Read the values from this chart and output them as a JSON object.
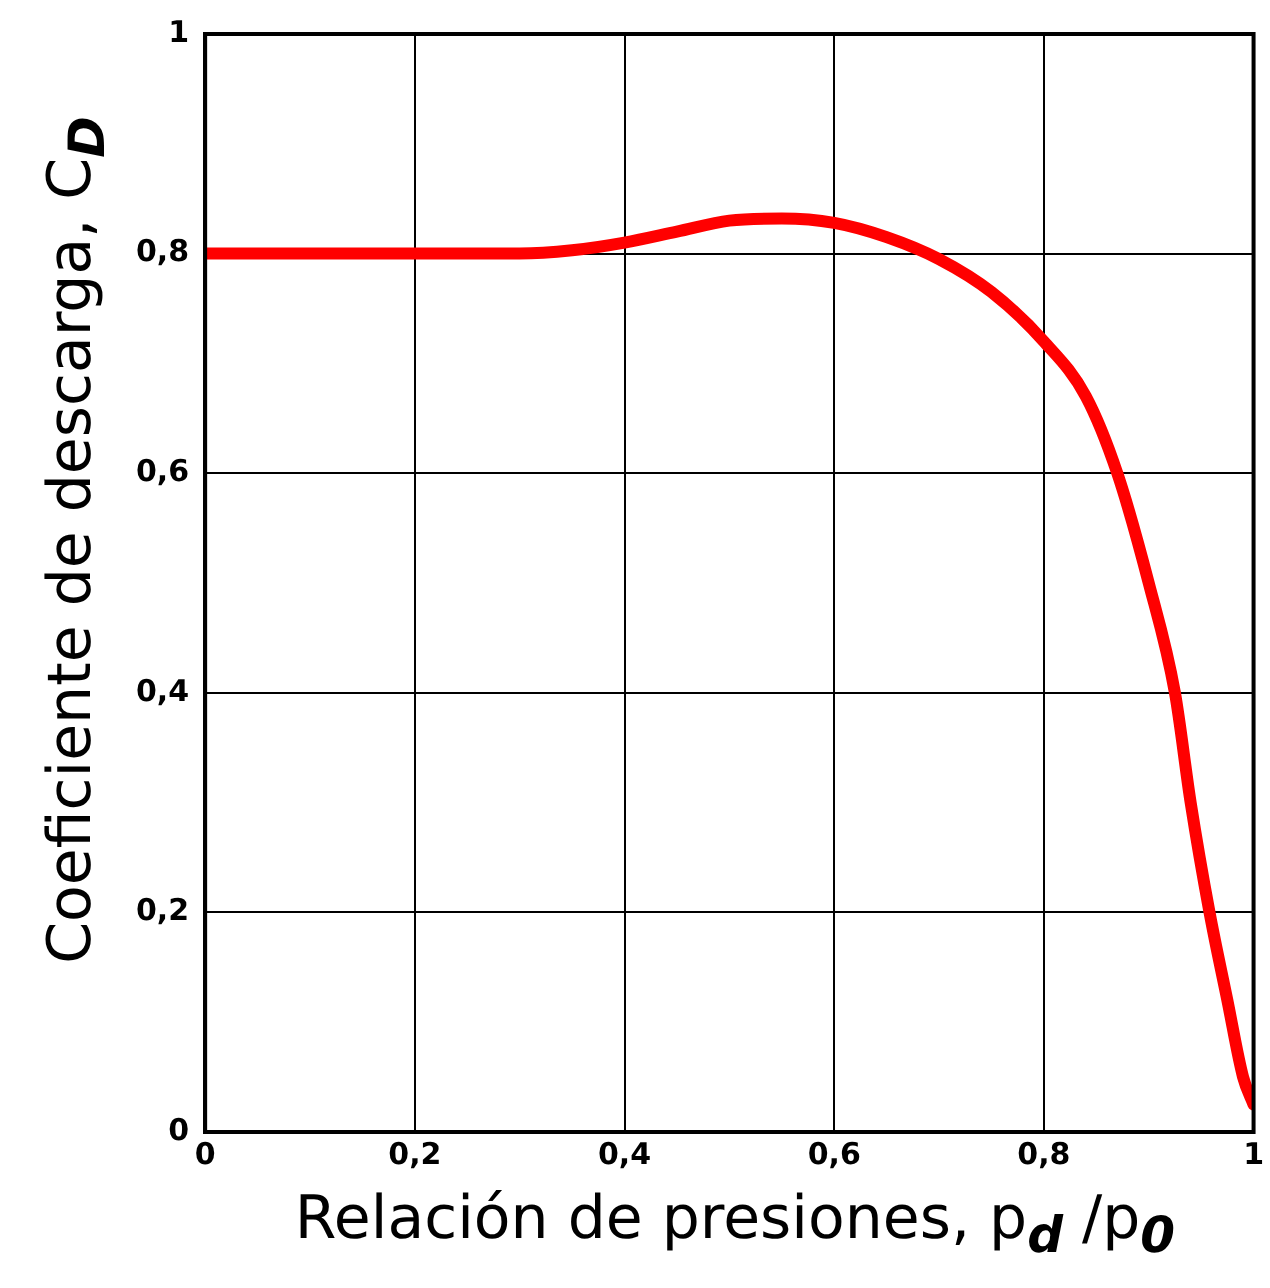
{
  "chart_data": {
    "type": "line",
    "xlabel": "Relación de presiones, p$_{d}$ /p$_{0}$",
    "ylabel": "Coeficiente de descarga, C$_{D}$",
    "x": [
      0,
      0.1,
      0.2,
      0.3,
      0.35,
      0.4,
      0.45,
      0.5,
      0.55,
      0.6,
      0.65,
      0.7,
      0.75,
      0.8,
      0.84,
      0.87,
      0.9,
      0.925,
      0.94,
      0.958,
      0.975,
      0.99,
      1.0
    ],
    "series": [
      {
        "color": "#ff0000",
        "values": [
          0.8,
          0.8,
          0.8,
          0.8,
          0.803,
          0.81,
          0.82,
          0.83,
          0.832,
          0.828,
          0.815,
          0.795,
          0.765,
          0.72,
          0.67,
          0.6,
          0.5,
          0.4,
          0.3,
          0.2,
          0.12,
          0.05,
          0.025
        ]
      }
    ],
    "xlim": [
      0,
      1
    ],
    "ylim": [
      0,
      1
    ],
    "xticks": [
      0,
      {
        "value": 0.2,
        "label": "0,2"
      },
      {
        "value": 0.4,
        "label": "0,4"
      },
      {
        "value": 0.6,
        "label": "0,6"
      },
      {
        "value": 0.8,
        "label": "0,8"
      },
      1
    ],
    "yticks": [
      0,
      {
        "value": 0.2,
        "label": "0,2"
      },
      {
        "value": 0.4,
        "label": "0,4"
      },
      {
        "value": 0.6,
        "label": "0,6"
      },
      {
        "value": 0.8,
        "label": "0,8"
      },
      1
    ],
    "grid": true,
    "marker": "none",
    "line_style": "solid",
    "legend": false
  }
}
